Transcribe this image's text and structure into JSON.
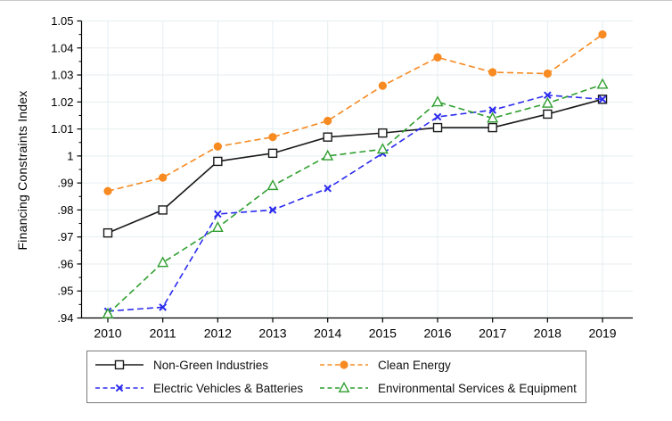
{
  "figure": {
    "background": "#ffffff",
    "border_color": "#c9c9c9"
  },
  "chart_data": {
    "type": "line",
    "title": "",
    "xlabel": "",
    "ylabel": "Financing Constraints Index",
    "categories": [
      "2010",
      "2011",
      "2012",
      "2013",
      "2014",
      "2015",
      "2016",
      "2017",
      "2018",
      "2019"
    ],
    "ylim": [
      0.94,
      1.05
    ],
    "y_major_tick_step": 0.01,
    "y_minor_tick_step": 0.005,
    "y_ticks": [
      {
        "v": 1.05,
        "label": "1.05"
      },
      {
        "v": 1.04,
        "label": "1.04"
      },
      {
        "v": 1.03,
        "label": "1.03"
      },
      {
        "v": 1.02,
        "label": "1.02"
      },
      {
        "v": 1.01,
        "label": "1.01"
      },
      {
        "v": 1.0,
        "label": "1"
      },
      {
        "v": 0.99,
        "label": ".99"
      },
      {
        "v": 0.98,
        "label": ".98"
      },
      {
        "v": 0.97,
        "label": ".97"
      },
      {
        "v": 0.96,
        "label": ".96"
      },
      {
        "v": 0.95,
        "label": ".95"
      },
      {
        "v": 0.94,
        "label": ".94"
      }
    ],
    "grid": "both-major",
    "gridline_color": "#e5eef1",
    "axis_color": "#000000",
    "legend_position": "bottom-box",
    "series": [
      {
        "name": "Non-Green Industries",
        "color": "#1a1a1a",
        "line_style": "solid",
        "marker": "square-hollow",
        "values": [
          0.9715,
          0.98,
          0.998,
          1.001,
          1.007,
          1.0085,
          1.0105,
          1.0105,
          1.0155,
          1.021
        ]
      },
      {
        "name": "Clean Energy",
        "color": "#f78a20",
        "line_style": "dashed",
        "marker": "circle-filled",
        "values": [
          0.987,
          0.992,
          1.0035,
          1.007,
          1.013,
          1.026,
          1.0365,
          1.031,
          1.0305,
          1.045
        ]
      },
      {
        "name": "Electric Vehicles & Batteries",
        "color": "#2b2bf0",
        "line_style": "dashed",
        "marker": "x",
        "values": [
          0.9425,
          0.944,
          0.9785,
          0.98,
          0.988,
          1.001,
          1.0145,
          1.017,
          1.0225,
          1.021
        ]
      },
      {
        "name": "Environmental Services & Equipment",
        "color": "#2f9e2f",
        "line_style": "dashed",
        "marker": "triangle-hollow",
        "values": [
          0.9415,
          0.9605,
          0.9735,
          0.989,
          1.0,
          1.0025,
          1.02,
          1.014,
          1.0195,
          1.0265
        ]
      }
    ]
  }
}
